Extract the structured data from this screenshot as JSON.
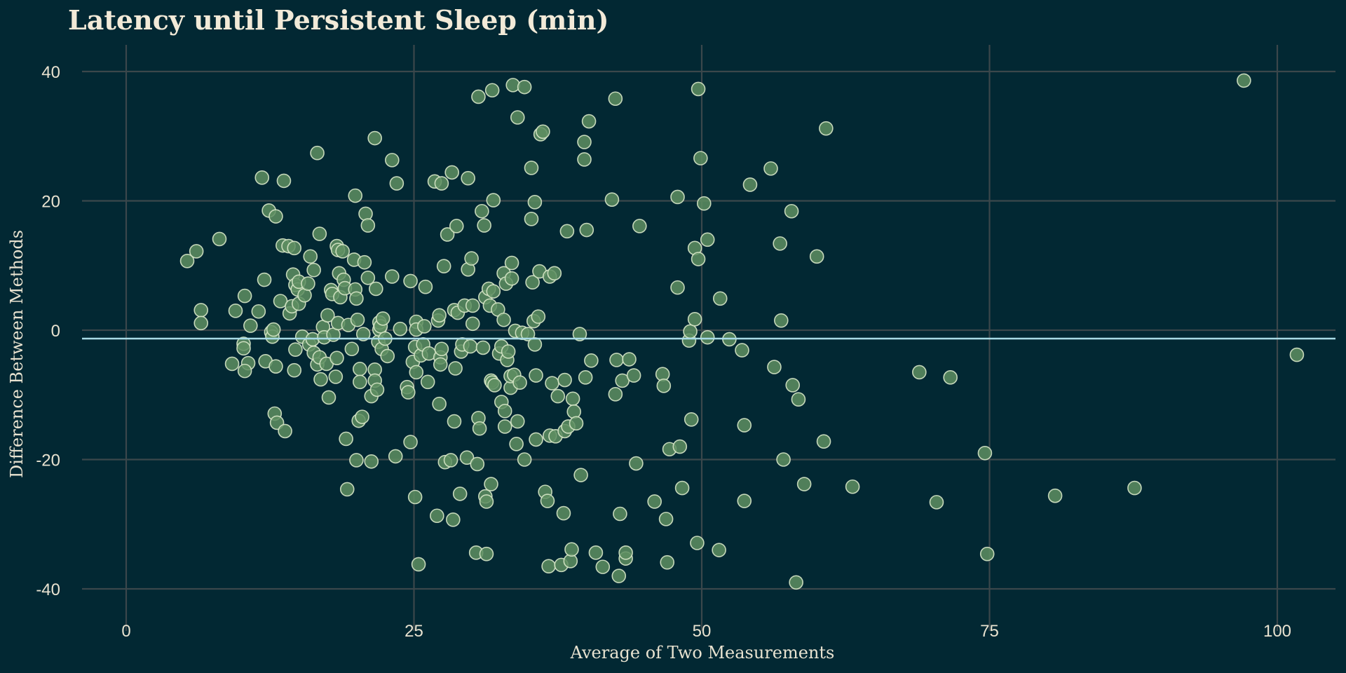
{
  "chart_data": {
    "type": "scatter",
    "title": "Latency until Persistent Sleep (min)",
    "xlabel": "Average of Two Measurements",
    "ylabel": "Difference Between Methods",
    "xlim": [
      -5,
      105
    ],
    "ylim": [
      -44,
      44
    ],
    "xticks": [
      0,
      25,
      50,
      75,
      100
    ],
    "yticks": [
      -40,
      -20,
      0,
      20,
      40
    ],
    "grid": true,
    "reference_line_y": -1.3,
    "colors": {
      "background": "#022833",
      "point_fill": "#5e8e62",
      "point_stroke": "#d6e6c6",
      "reference_line": "#a8dbe6",
      "grid": "#3b474b"
    },
    "points": [
      [
        5.3,
        10.7
      ],
      [
        6.1,
        12.2
      ],
      [
        6.5,
        3.1
      ],
      [
        6.5,
        1.1
      ],
      [
        8.1,
        14.1
      ],
      [
        9.2,
        -5.2
      ],
      [
        9.5,
        3.0
      ],
      [
        10.2,
        -2.1
      ],
      [
        10.2,
        -2.8
      ],
      [
        10.3,
        5.3
      ],
      [
        10.6,
        -5.1
      ],
      [
        10.3,
        -6.3
      ],
      [
        10.8,
        0.7
      ],
      [
        11.5,
        2.9
      ],
      [
        11.8,
        23.6
      ],
      [
        12.0,
        7.8
      ],
      [
        12.1,
        -4.8
      ],
      [
        12.4,
        18.5
      ],
      [
        12.6,
        -0.3
      ],
      [
        12.7,
        -1.0
      ],
      [
        12.8,
        0.1
      ],
      [
        12.9,
        -12.9
      ],
      [
        13.0,
        -5.6
      ],
      [
        13.1,
        -14.3
      ],
      [
        13.0,
        17.6
      ],
      [
        13.4,
        4.5
      ],
      [
        13.6,
        13.1
      ],
      [
        13.7,
        23.1
      ],
      [
        13.8,
        -15.6
      ],
      [
        14.1,
        13.0
      ],
      [
        14.2,
        2.6
      ],
      [
        14.4,
        3.7
      ],
      [
        14.5,
        8.6
      ],
      [
        14.6,
        12.7
      ],
      [
        14.6,
        -6.2
      ],
      [
        14.7,
        -3.0
      ],
      [
        14.7,
        7.0
      ],
      [
        14.9,
        6.3
      ],
      [
        15.0,
        4.1
      ],
      [
        15.0,
        7.5
      ],
      [
        15.3,
        -1.0
      ],
      [
        15.5,
        5.4
      ],
      [
        15.8,
        7.2
      ],
      [
        15.9,
        -2.2
      ],
      [
        16.0,
        11.4
      ],
      [
        16.2,
        -1.4
      ],
      [
        16.3,
        -3.5
      ],
      [
        16.3,
        9.3
      ],
      [
        16.6,
        27.4
      ],
      [
        16.6,
        -5.3
      ],
      [
        16.8,
        14.9
      ],
      [
        16.8,
        -4.2
      ],
      [
        16.9,
        -7.6
      ],
      [
        17.1,
        0.5
      ],
      [
        17.2,
        -1.1
      ],
      [
        17.4,
        -5.2
      ],
      [
        17.5,
        2.3
      ],
      [
        17.6,
        -10.4
      ],
      [
        17.8,
        6.2
      ],
      [
        17.9,
        5.6
      ],
      [
        18.0,
        -0.7
      ],
      [
        18.2,
        -7.2
      ],
      [
        18.3,
        -4.3
      ],
      [
        18.3,
        13.0
      ],
      [
        18.4,
        1.1
      ],
      [
        18.4,
        12.4
      ],
      [
        18.5,
        8.8
      ],
      [
        18.6,
        5.1
      ],
      [
        18.8,
        12.2
      ],
      [
        18.9,
        7.8
      ],
      [
        19.0,
        6.5
      ],
      [
        19.1,
        -16.8
      ],
      [
        19.2,
        -24.6
      ],
      [
        19.3,
        0.8
      ],
      [
        19.6,
        -2.9
      ],
      [
        19.8,
        10.9
      ],
      [
        19.9,
        6.3
      ],
      [
        19.9,
        20.8
      ],
      [
        20.0,
        -20.1
      ],
      [
        20.0,
        4.9
      ],
      [
        20.1,
        1.6
      ],
      [
        20.2,
        -14.0
      ],
      [
        20.3,
        -6.0
      ],
      [
        20.3,
        -8.0
      ],
      [
        20.5,
        -13.4
      ],
      [
        20.6,
        -0.6
      ],
      [
        20.7,
        10.5
      ],
      [
        20.8,
        18.0
      ],
      [
        21.0,
        16.2
      ],
      [
        21.0,
        8.1
      ],
      [
        21.3,
        -20.3
      ],
      [
        21.3,
        -10.2
      ],
      [
        21.6,
        29.7
      ],
      [
        21.6,
        -6.1
      ],
      [
        21.6,
        -7.8
      ],
      [
        21.7,
        6.4
      ],
      [
        21.8,
        -9.2
      ],
      [
        21.9,
        -1.8
      ],
      [
        22.0,
        0.1
      ],
      [
        22.0,
        1.2
      ],
      [
        22.1,
        0.6
      ],
      [
        22.2,
        -2.9
      ],
      [
        22.3,
        1.8
      ],
      [
        22.5,
        -1.3
      ],
      [
        22.7,
        -4.0
      ],
      [
        23.1,
        8.3
      ],
      [
        23.1,
        26.3
      ],
      [
        23.4,
        -19.5
      ],
      [
        23.5,
        22.7
      ],
      [
        23.8,
        0.2
      ],
      [
        24.4,
        -8.8
      ],
      [
        24.5,
        -9.6
      ],
      [
        24.7,
        7.6
      ],
      [
        24.7,
        -17.3
      ],
      [
        24.9,
        -4.9
      ],
      [
        25.1,
        -25.8
      ],
      [
        25.1,
        -2.6
      ],
      [
        25.2,
        -6.5
      ],
      [
        25.2,
        1.3
      ],
      [
        25.2,
        0.1
      ],
      [
        25.4,
        -36.2
      ],
      [
        25.6,
        -3.9
      ],
      [
        25.8,
        -2.2
      ],
      [
        25.9,
        0.6
      ],
      [
        26.0,
        6.7
      ],
      [
        26.2,
        -8.0
      ],
      [
        26.3,
        -3.6
      ],
      [
        26.8,
        23.0
      ],
      [
        27.0,
        -28.7
      ],
      [
        27.1,
        1.5
      ],
      [
        27.2,
        -11.4
      ],
      [
        27.2,
        2.3
      ],
      [
        27.3,
        -4.2
      ],
      [
        27.3,
        -5.3
      ],
      [
        27.4,
        22.7
      ],
      [
        27.4,
        -2.9
      ],
      [
        27.6,
        9.9
      ],
      [
        27.7,
        -20.4
      ],
      [
        27.9,
        14.8
      ],
      [
        28.2,
        -20.1
      ],
      [
        28.3,
        24.4
      ],
      [
        28.4,
        -29.3
      ],
      [
        28.5,
        -14.1
      ],
      [
        28.5,
        3.1
      ],
      [
        28.6,
        -5.9
      ],
      [
        28.7,
        16.1
      ],
      [
        28.8,
        2.7
      ],
      [
        29.0,
        -25.3
      ],
      [
        29.1,
        -3.3
      ],
      [
        29.2,
        -2.2
      ],
      [
        29.4,
        3.8
      ],
      [
        29.6,
        -19.7
      ],
      [
        29.7,
        23.5
      ],
      [
        29.7,
        9.4
      ],
      [
        29.9,
        -2.5
      ],
      [
        30.0,
        11.1
      ],
      [
        30.1,
        1.0
      ],
      [
        30.1,
        3.8
      ],
      [
        30.4,
        -34.4
      ],
      [
        30.5,
        -20.7
      ],
      [
        30.6,
        36.1
      ],
      [
        30.6,
        -13.6
      ],
      [
        30.7,
        -15.2
      ],
      [
        30.9,
        18.4
      ],
      [
        31.0,
        -2.7
      ],
      [
        31.1,
        16.2
      ],
      [
        31.2,
        5.1
      ],
      [
        31.2,
        -25.7
      ],
      [
        31.3,
        -26.5
      ],
      [
        31.3,
        -34.6
      ],
      [
        31.5,
        6.4
      ],
      [
        31.6,
        3.8
      ],
      [
        31.7,
        -7.8
      ],
      [
        31.7,
        -23.8
      ],
      [
        31.8,
        -8.1
      ],
      [
        31.8,
        37.1
      ],
      [
        31.9,
        6.0
      ],
      [
        31.9,
        20.1
      ],
      [
        32.0,
        -8.5
      ],
      [
        32.3,
        3.2
      ],
      [
        32.4,
        -3.6
      ],
      [
        32.6,
        -11.1
      ],
      [
        32.6,
        -2.5
      ],
      [
        32.8,
        8.8
      ],
      [
        32.8,
        1.6
      ],
      [
        32.9,
        -12.5
      ],
      [
        32.9,
        -14.9
      ],
      [
        33.0,
        7.2
      ],
      [
        33.1,
        -4.6
      ],
      [
        33.2,
        -3.3
      ],
      [
        33.4,
        -8.9
      ],
      [
        33.4,
        -7.1
      ],
      [
        33.5,
        10.4
      ],
      [
        33.5,
        8.0
      ],
      [
        33.6,
        37.9
      ],
      [
        33.7,
        -6.9
      ],
      [
        33.8,
        -0.1
      ],
      [
        33.9,
        -17.6
      ],
      [
        34.0,
        32.9
      ],
      [
        34.0,
        -14.1
      ],
      [
        34.2,
        -8.1
      ],
      [
        34.4,
        -0.4
      ],
      [
        34.6,
        37.6
      ],
      [
        34.6,
        -20.0
      ],
      [
        34.9,
        -0.6
      ],
      [
        35.2,
        25.1
      ],
      [
        35.2,
        17.2
      ],
      [
        35.3,
        7.4
      ],
      [
        35.4,
        1.4
      ],
      [
        35.5,
        19.8
      ],
      [
        35.5,
        -2.2
      ],
      [
        35.6,
        -7.0
      ],
      [
        35.6,
        -16.9
      ],
      [
        35.8,
        2.1
      ],
      [
        35.9,
        9.1
      ],
      [
        36.0,
        30.3
      ],
      [
        36.2,
        30.7
      ],
      [
        36.4,
        -25.0
      ],
      [
        36.6,
        -26.4
      ],
      [
        36.7,
        -36.5
      ],
      [
        36.8,
        8.3
      ],
      [
        36.8,
        -16.3
      ],
      [
        37.0,
        -8.2
      ],
      [
        37.2,
        8.8
      ],
      [
        37.3,
        -16.4
      ],
      [
        37.5,
        -10.2
      ],
      [
        37.8,
        -36.3
      ],
      [
        38.0,
        -28.3
      ],
      [
        38.1,
        -15.6
      ],
      [
        38.1,
        -7.7
      ],
      [
        38.3,
        15.3
      ],
      [
        38.4,
        -14.9
      ],
      [
        38.6,
        -35.7
      ],
      [
        38.7,
        -33.9
      ],
      [
        38.8,
        -10.6
      ],
      [
        38.9,
        -12.6
      ],
      [
        39.1,
        -14.4
      ],
      [
        39.4,
        -0.6
      ],
      [
        39.5,
        -22.4
      ],
      [
        39.8,
        29.1
      ],
      [
        39.8,
        26.4
      ],
      [
        39.9,
        -7.3
      ],
      [
        40.0,
        15.5
      ],
      [
        40.2,
        32.3
      ],
      [
        40.4,
        -4.7
      ],
      [
        40.8,
        -34.4
      ],
      [
        41.4,
        -36.6
      ],
      [
        42.2,
        20.2
      ],
      [
        42.5,
        35.8
      ],
      [
        42.5,
        -9.9
      ],
      [
        42.6,
        -4.6
      ],
      [
        42.8,
        -38.0
      ],
      [
        42.9,
        -28.4
      ],
      [
        43.1,
        -7.8
      ],
      [
        43.4,
        -35.3
      ],
      [
        43.4,
        -34.4
      ],
      [
        43.7,
        -4.5
      ],
      [
        44.1,
        -7.0
      ],
      [
        44.3,
        -20.6
      ],
      [
        44.6,
        16.1
      ],
      [
        45.9,
        -26.5
      ],
      [
        46.6,
        -6.8
      ],
      [
        46.7,
        -8.6
      ],
      [
        46.9,
        -29.2
      ],
      [
        47.0,
        -35.9
      ],
      [
        47.2,
        -18.4
      ],
      [
        47.9,
        20.6
      ],
      [
        47.9,
        6.6
      ],
      [
        48.1,
        -18.0
      ],
      [
        48.3,
        -24.4
      ],
      [
        48.9,
        -1.6
      ],
      [
        49.0,
        -0.2
      ],
      [
        49.1,
        -13.8
      ],
      [
        49.4,
        1.7
      ],
      [
        49.4,
        12.7
      ],
      [
        49.6,
        -32.9
      ],
      [
        49.7,
        11.0
      ],
      [
        49.7,
        37.3
      ],
      [
        49.9,
        26.6
      ],
      [
        50.2,
        19.6
      ],
      [
        50.5,
        14.0
      ],
      [
        50.5,
        -1.1
      ],
      [
        51.5,
        -34.0
      ],
      [
        51.6,
        4.9
      ],
      [
        52.4,
        -1.4
      ],
      [
        53.5,
        -3.1
      ],
      [
        53.7,
        -14.7
      ],
      [
        53.7,
        -26.4
      ],
      [
        54.2,
        22.5
      ],
      [
        56.0,
        25.0
      ],
      [
        56.3,
        -5.7
      ],
      [
        56.8,
        13.4
      ],
      [
        56.9,
        1.5
      ],
      [
        57.1,
        -20.0
      ],
      [
        57.8,
        18.4
      ],
      [
        57.9,
        -8.5
      ],
      [
        58.2,
        -39.0
      ],
      [
        58.4,
        -10.7
      ],
      [
        58.9,
        -23.8
      ],
      [
        60.0,
        11.4
      ],
      [
        60.6,
        -17.2
      ],
      [
        60.8,
        31.2
      ],
      [
        63.1,
        -24.2
      ],
      [
        68.9,
        -6.5
      ],
      [
        70.4,
        -26.6
      ],
      [
        71.6,
        -7.3
      ],
      [
        74.6,
        -19.0
      ],
      [
        74.8,
        -34.6
      ],
      [
        80.7,
        -25.6
      ],
      [
        87.6,
        -24.4
      ],
      [
        97.1,
        38.6
      ],
      [
        101.7,
        -3.8
      ]
    ]
  }
}
